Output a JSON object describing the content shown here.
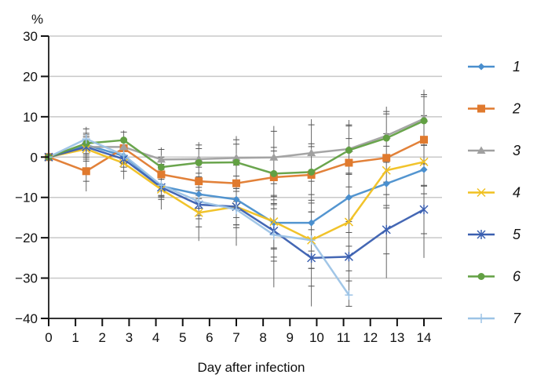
{
  "chart_data": {
    "type": "line",
    "title": "",
    "xlabel": "Day after infection",
    "ylabel": "%",
    "xlim": [
      0,
      14
    ],
    "ylim": [
      -40,
      30
    ],
    "x_ticks": [
      0,
      1,
      2,
      3,
      4,
      5,
      6,
      7,
      8,
      9,
      10,
      11,
      12,
      13,
      14
    ],
    "y_ticks": [
      -40,
      -30,
      -20,
      -10,
      0,
      10,
      20,
      30
    ],
    "y_tick_labels": [
      "−40",
      "−30",
      "−20",
      "−10",
      "0",
      "10",
      "20",
      "30"
    ],
    "grid": "horizontal",
    "legend_position": "right",
    "x": [
      0,
      1.4,
      2.8,
      4.2,
      5.6,
      7.0,
      8.4,
      9.8,
      11.2,
      12.6,
      14.0
    ],
    "series": [
      {
        "name": "1",
        "color": "#4a8fce",
        "marker": "diamond",
        "values": [
          0,
          3.0,
          0.3,
          -7.2,
          -9.2,
          -10.5,
          -16.3,
          -16.3,
          -10.0,
          -6.6,
          -3.1
        ]
      },
      {
        "name": "2",
        "color": "#e07a2e",
        "marker": "square",
        "values": [
          0,
          -3.5,
          2.2,
          -4.3,
          -6.0,
          -6.5,
          -5.0,
          -4.4,
          -1.4,
          -0.2,
          4.3
        ]
      },
      {
        "name": "3",
        "color": "#a0a0a0",
        "marker": "triangle",
        "values": [
          0,
          2.5,
          2.5,
          -0.6,
          -0.5,
          -0.2,
          -0.1,
          1.0,
          2.0,
          5.3,
          9.5
        ]
      },
      {
        "name": "4",
        "color": "#f0c020",
        "marker": "x",
        "values": [
          0,
          2.0,
          -1.5,
          -8.0,
          -13.8,
          -12.3,
          -16.0,
          -20.6,
          -16.1,
          -3.3,
          -1.2
        ]
      },
      {
        "name": "5",
        "color": "#3a5fb0",
        "marker": "star",
        "values": [
          0,
          2.5,
          -0.5,
          -7.5,
          -11.8,
          -12.3,
          -18.3,
          -25.0,
          -24.7,
          -18.0,
          -13.0
        ]
      },
      {
        "name": "6",
        "color": "#62a043",
        "marker": "circle",
        "values": [
          0,
          3.4,
          4.2,
          -2.5,
          -1.4,
          -1.3,
          -4.1,
          -3.7,
          1.7,
          4.7,
          9.0
        ]
      },
      {
        "name": "7",
        "color": "#9cc3e6",
        "marker": "plus",
        "values": [
          0,
          4.5,
          0.5,
          -7.0,
          -11.0,
          -13.0,
          -19.3,
          -20.6,
          -34.2,
          null,
          null
        ]
      }
    ],
    "error_bars": {
      "description": "vertical error bars at each time point",
      "spread": [
        0,
        5,
        4,
        5,
        7,
        9,
        13,
        14,
        12,
        12,
        12
      ]
    }
  }
}
